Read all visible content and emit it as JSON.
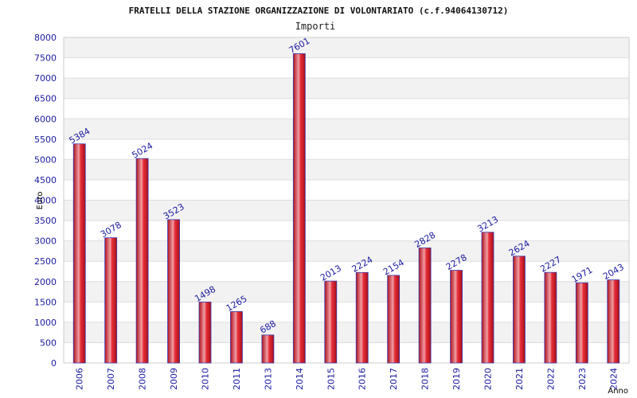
{
  "chart_data": {
    "type": "bar",
    "title": "FRATELLI DELLA STAZIONE ORGANIZZAZIONE DI VOLONTARIATO (c.f.94064130712)",
    "subtitle": "Importi",
    "xlabel": "Anno",
    "ylabel": "Euro",
    "ylim": [
      0,
      8000
    ],
    "ytick_step": 500,
    "grid": true,
    "categories": [
      "2006",
      "2007",
      "2008",
      "2009",
      "2010",
      "2011",
      "2013",
      "2014",
      "2015",
      "2016",
      "2017",
      "2018",
      "2019",
      "2020",
      "2021",
      "2022",
      "2023",
      "2024"
    ],
    "values": [
      5384,
      3078,
      5024,
      3523,
      1498,
      1265,
      688,
      7601,
      2013,
      2224,
      2154,
      2828,
      2278,
      3213,
      2624,
      2227,
      1971,
      2043
    ],
    "bar_color": "#e8303a",
    "bar_edge_color": "#3a3ab0",
    "band_color": "#f2f2f2"
  }
}
